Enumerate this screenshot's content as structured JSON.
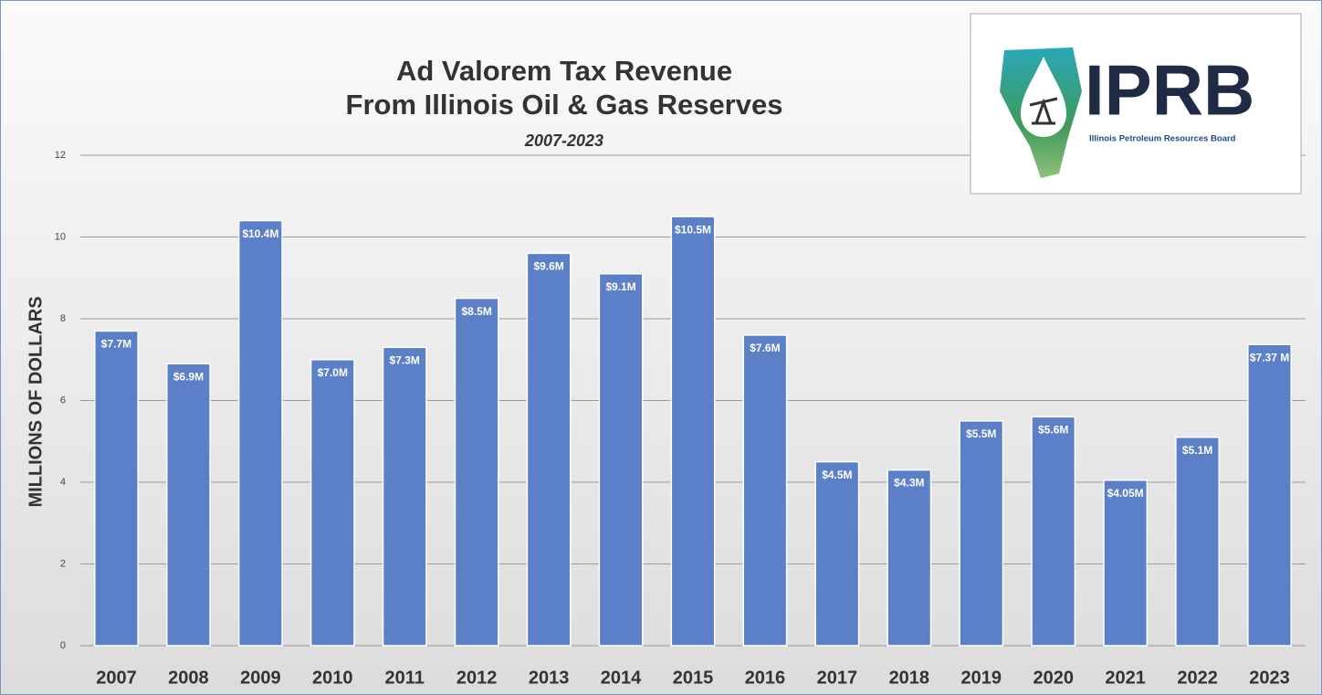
{
  "chart_data": {
    "type": "bar",
    "title": [
      "Ad Valorem Tax Revenue",
      "From Illinois Oil & Gas Reserves"
    ],
    "subtitle": "2007-2023",
    "y_label": "MILLIONS OF DOLLARS",
    "categories": [
      "2007",
      "2008",
      "2009",
      "2010",
      "2011",
      "2012",
      "2013",
      "2014",
      "2015",
      "2016",
      "2017",
      "2018",
      "2019",
      "2020",
      "2021",
      "2022",
      "2023"
    ],
    "values": [
      7.7,
      6.9,
      10.4,
      7.0,
      7.3,
      8.5,
      9.6,
      9.1,
      10.5,
      7.6,
      4.5,
      4.3,
      5.5,
      5.6,
      4.05,
      5.1,
      7.37
    ],
    "value_labels": [
      "$7.7M",
      "$6.9M",
      "$10.4M",
      "$7.0M",
      "$7.3M",
      "$8.5M",
      "$9.6M",
      "$9.1M",
      "$10.5M",
      "$7.6M",
      "$4.5M",
      "$4.3M",
      "$5.5M",
      "$5.6M",
      "$4.05M",
      "$5.1M",
      "$7.37 M"
    ],
    "color": "#5b80c8",
    "ylim": [
      0,
      12
    ],
    "yticks": [
      0,
      2,
      4,
      6,
      8,
      10,
      12
    ],
    "grid": true
  },
  "logo": {
    "text": "IPRB",
    "caption": "Illinois Petroleum Resources Board"
  }
}
